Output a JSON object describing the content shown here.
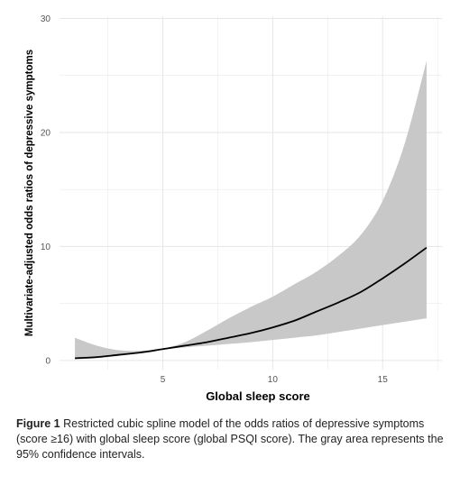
{
  "caption": {
    "label": "Figure 1",
    "text": "Restricted cubic spline model of the odds ratios of depressive symptoms (score ≥16) with global sleep score (global PSQI score). The gray area represents the 95% confidence intervals."
  },
  "colors": {
    "panel_background": "#ffffff",
    "grid": "#e6e6e6",
    "confidence_band": "#c8c8c8",
    "line": "#000000",
    "tick_text": "#555555"
  },
  "chart_data": {
    "type": "line",
    "title": "",
    "xlabel": "Global sleep score",
    "ylabel": "Multivariate-adjusted odds ratios of depressive symptoms",
    "xlim": [
      0.3,
      17.7
    ],
    "ylim": [
      -0.8,
      30.2
    ],
    "x_ticks": [
      5,
      10,
      15
    ],
    "y_ticks": [
      0,
      10,
      20,
      30
    ],
    "grid": true,
    "legend": "none",
    "series": [
      {
        "role": "estimate",
        "x": [
          1,
          2,
          3,
          4,
          5,
          6,
          7,
          8,
          9,
          10,
          11,
          12,
          13,
          14,
          15,
          16,
          17
        ],
        "y": [
          0.2,
          0.3,
          0.5,
          0.7,
          1.0,
          1.3,
          1.6,
          2.0,
          2.4,
          2.9,
          3.5,
          4.3,
          5.1,
          6.0,
          7.2,
          8.5,
          9.9
        ]
      },
      {
        "role": "ci_lower",
        "x": [
          1,
          2,
          3,
          4,
          5,
          6,
          7,
          8,
          9,
          10,
          11,
          12,
          13,
          14,
          15,
          16,
          17
        ],
        "y": [
          0.1,
          0.2,
          0.4,
          0.65,
          0.95,
          1.15,
          1.3,
          1.45,
          1.6,
          1.8,
          2.0,
          2.2,
          2.5,
          2.8,
          3.1,
          3.4,
          3.7
        ]
      },
      {
        "role": "ci_upper",
        "x": [
          1,
          2,
          3,
          4,
          5,
          6,
          7,
          8,
          9,
          10,
          11,
          12,
          13,
          14,
          15,
          16,
          17
        ],
        "y": [
          2.0,
          1.3,
          0.9,
          0.85,
          1.05,
          1.6,
          2.6,
          3.7,
          4.7,
          5.6,
          6.7,
          7.8,
          9.2,
          11.0,
          14.0,
          19.0,
          26.3
        ]
      }
    ]
  }
}
